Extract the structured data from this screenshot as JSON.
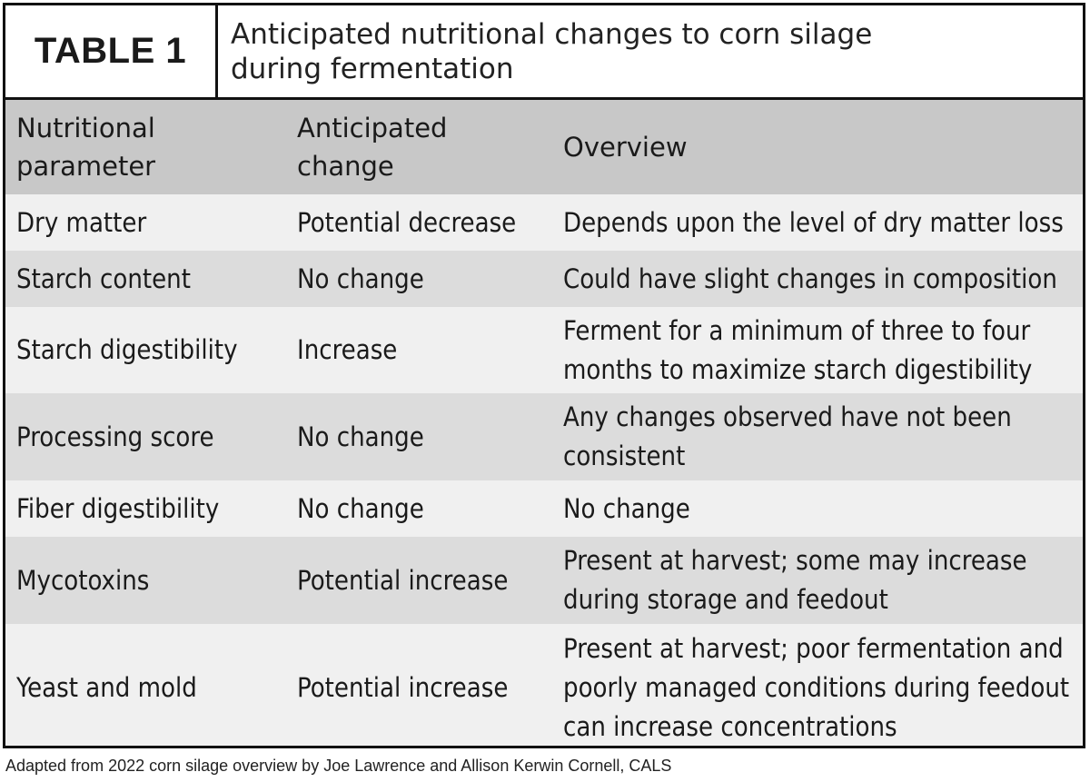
{
  "table": {
    "label": "TABLE 1",
    "title": "Anticipated nutritional changes to corn silage during fermentation",
    "headers": [
      "Nutritional parameter",
      "Anticipated change",
      "Overview"
    ],
    "rows": [
      [
        "Dry matter",
        "Potential decrease",
        "Depends upon the level of dry matter loss"
      ],
      [
        "Starch content",
        "No change",
        "Could have slight changes in composition"
      ],
      [
        "Starch digestibility",
        "Increase",
        "Ferment for a minimum of three to four months to maximize starch digestibility"
      ],
      [
        "Processing score",
        "No change",
        "Any changes observed have not been consistent"
      ],
      [
        "Fiber digestibility",
        "No change",
        "No change"
      ],
      [
        "Mycotoxins",
        "Potential increase",
        "Present at harvest; some may increase during storage and feedout"
      ],
      [
        "Yeast and mold",
        "Potential increase",
        "Present at harvest; poor fermentation and poorly managed conditions during feedout can increase concentrations"
      ]
    ]
  },
  "source": "Adapted from 2022 corn silage overview by Joe Lawrence and Allison Kerwin Cornell, CALS",
  "colors": {
    "border": "#111111",
    "header_bg": "#c8c8c8",
    "row_light": "#f0f0f0",
    "row_dark": "#dcdcdc"
  }
}
